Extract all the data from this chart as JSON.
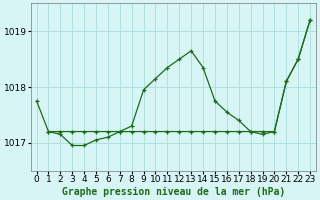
{
  "title": "Graphe pression niveau de la mer (hPa)",
  "bg_color": "#d8f5f5",
  "grid_color": "#aadddd",
  "line_color": "#1a6b1a",
  "xlim": [
    -0.5,
    23.5
  ],
  "ylim": [
    1016.5,
    1019.5
  ],
  "yticks": [
    1017,
    1018,
    1019
  ],
  "xticks": [
    0,
    1,
    2,
    3,
    4,
    5,
    6,
    7,
    8,
    9,
    10,
    11,
    12,
    13,
    14,
    15,
    16,
    17,
    18,
    19,
    20,
    21,
    22,
    23
  ],
  "series1_x": [
    0,
    1,
    2,
    3,
    4,
    5,
    6,
    7,
    8,
    9,
    10,
    11,
    12,
    13,
    14,
    15,
    16,
    17,
    18,
    19,
    20,
    21,
    22,
    23
  ],
  "series1_y": [
    1017.75,
    1017.2,
    1017.15,
    1016.95,
    1016.95,
    1017.05,
    1017.1,
    1017.2,
    1017.3,
    1017.95,
    1018.15,
    1018.35,
    1018.5,
    1018.65,
    1018.35,
    1017.75,
    1017.55,
    1017.4,
    1017.2,
    1017.15,
    1017.2,
    1018.1,
    1018.5,
    1019.2
  ],
  "series2_x": [
    1,
    2,
    3,
    4,
    5,
    6,
    7,
    8,
    9,
    10,
    11,
    12,
    13,
    14,
    15,
    16,
    17,
    18,
    19,
    20,
    21,
    22,
    23
  ],
  "series2_y": [
    1017.2,
    1017.2,
    1017.2,
    1017.2,
    1017.2,
    1017.2,
    1017.2,
    1017.2,
    1017.2,
    1017.2,
    1017.2,
    1017.2,
    1017.2,
    1017.2,
    1017.2,
    1017.2,
    1017.2,
    1017.2,
    1017.2,
    1017.2,
    1018.1,
    1018.5,
    1019.2
  ],
  "xlabel_fontsize": 6.5,
  "ylabel_fontsize": 6.5,
  "title_fontsize": 7
}
